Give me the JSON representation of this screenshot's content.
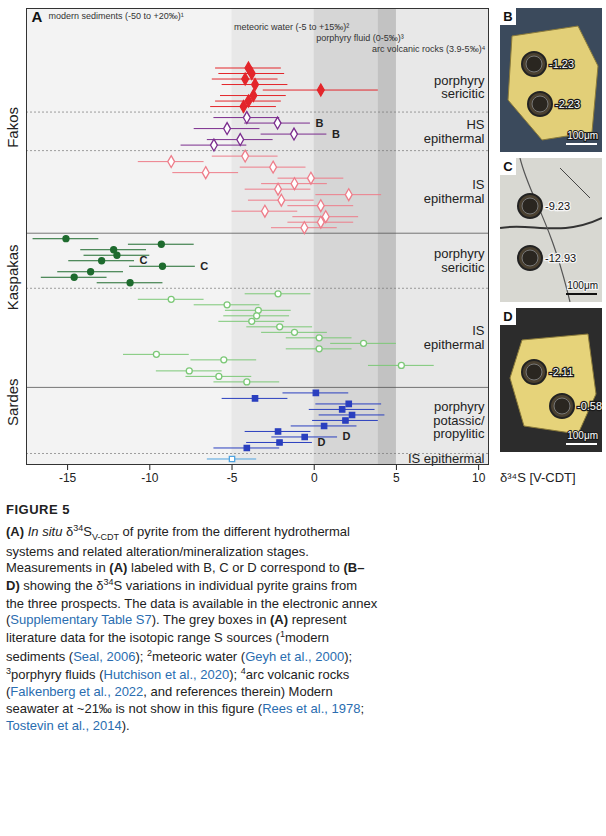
{
  "chart_data": {
    "type": "scatter",
    "panel_label": "A",
    "xlabel": "δ³⁴S [V-CDT]",
    "xlim": [
      -17.5,
      10.6
    ],
    "xticks": [
      -15,
      -10,
      -5,
      0,
      5,
      10
    ],
    "tick_labels": "x",
    "grid": false,
    "reference_ranges": [
      {
        "name": "modern sediments (-50 to +20‰)¹",
        "range": [
          -50,
          20
        ],
        "color": "#f3f3f3"
      },
      {
        "name": "meteoric water (-5 to +15‰)²",
        "range": [
          -5,
          15
        ],
        "color": "#e8e8e8"
      },
      {
        "name": "porphyry fluid (0-5‰)³",
        "range": [
          0,
          5
        ],
        "color": "#d6d6d6"
      },
      {
        "name": "arc volcanic rocks (3.9-5‰)⁴",
        "range": [
          3.9,
          5
        ],
        "color": "#c2c2c2"
      }
    ],
    "series": [
      {
        "prospect": "Fakos",
        "name": "porphyry sericitic",
        "color": "#e3262b",
        "marker": "filled-diamond",
        "values": [
          -4.0,
          -3.8,
          -4.2,
          -3.6,
          0.4,
          -3.7,
          -4.0,
          -4.3
        ],
        "errors": [
          2,
          2,
          2,
          2,
          3.5,
          2,
          2,
          2
        ],
        "labels": [
          null,
          null,
          null,
          null,
          null,
          null,
          null,
          null
        ]
      },
      {
        "prospect": "Fakos",
        "name": "HS epithermal",
        "color": "#7b2d8e",
        "marker": "open-diamond",
        "values": [
          -4.1,
          -2.23,
          -5.3,
          -1.23,
          -4.5,
          -6.1
        ],
        "errors": [
          2,
          2,
          2,
          2,
          2,
          2
        ],
        "labels": [
          null,
          "B",
          null,
          "B",
          null,
          null
        ]
      },
      {
        "prospect": "Fakos",
        "name": "IS epithermal",
        "color": "#ee7d8a",
        "marker": "open-diamond",
        "values": [
          -4.2,
          -8.7,
          -2.5,
          -6.6,
          -0.2,
          -1.2,
          -2.2,
          2.1,
          -2.0,
          0.4,
          -3.0,
          0.7,
          0.4,
          -0.6
        ],
        "errors": [
          2,
          2,
          2,
          2,
          2,
          2,
          2,
          2,
          2,
          2,
          2,
          2,
          2,
          2
        ],
        "labels": [
          null,
          null,
          null,
          null,
          null,
          null,
          null,
          null,
          null,
          null,
          null,
          null,
          null,
          null
        ]
      },
      {
        "prospect": "Kaspakas",
        "name": "porphyry sericitic",
        "color": "#1e6b2e",
        "marker": "filled-circle",
        "values": [
          -15.1,
          -9.3,
          -12.2,
          -12.0,
          -12.93,
          -9.23,
          -13.6,
          -14.6,
          -11.2
        ],
        "errors": [
          2,
          2,
          2,
          2,
          2,
          2,
          2,
          2,
          2
        ],
        "labels": [
          null,
          null,
          null,
          null,
          "C",
          "C",
          null,
          null,
          null
        ]
      },
      {
        "prospect": "Kaspakas",
        "name": "IS epithermal",
        "color": "#7cc877",
        "marker": "open-circle",
        "values": [
          -2.2,
          -8.7,
          -5.3,
          -3.4,
          -3.5,
          -3.8,
          -2.1,
          -1.2,
          0.3,
          3.0,
          0.3,
          -9.6,
          -5.5,
          5.3,
          -7.6,
          -5.8,
          -4.1
        ],
        "errors": [
          2,
          2,
          2,
          2,
          2,
          2,
          2,
          2,
          2,
          2,
          2,
          2,
          2,
          2,
          2,
          2,
          2
        ],
        "labels": [
          null,
          null,
          null,
          null,
          null,
          null,
          null,
          null,
          null,
          null,
          null,
          null,
          null,
          null,
          null,
          null,
          null
        ]
      },
      {
        "prospect": "Sardes",
        "name": "porphyry potassic/propylitic",
        "color": "#2a3fbf",
        "marker": "filled-square",
        "values": [
          0.1,
          -3.6,
          2.1,
          1.7,
          2.3,
          1.9,
          0.6,
          -2.2,
          -0.58,
          -2.11,
          -4.1
        ],
        "errors": [
          2,
          2,
          2,
          2,
          2,
          2,
          2,
          2,
          2,
          2,
          2
        ],
        "labels": [
          null,
          null,
          null,
          null,
          null,
          null,
          null,
          null,
          "D",
          "D",
          null
        ]
      },
      {
        "prospect": "Sardes",
        "name": "IS epithermal",
        "color": "#4fa3e0",
        "marker": "open-square",
        "values": [
          -5.0
        ],
        "errors": [
          1.5
        ],
        "labels": [
          null
        ]
      }
    ]
  },
  "panels": [
    {
      "label": "B",
      "spots": [
        -1.23,
        -2.23
      ],
      "scale_bar": "100μm"
    },
    {
      "label": "C",
      "spots": [
        -9.23,
        -12.93
      ],
      "scale_bar": "100μm"
    },
    {
      "label": "D",
      "spots": [
        -2.11,
        -0.58
      ],
      "scale_bar": "100μm"
    }
  ],
  "caption": {
    "heading": "FIGURE 5",
    "segments": [
      {
        "text": "(A)",
        "style": "b"
      },
      {
        "text": " "
      },
      {
        "text": "In situ",
        "style": "i"
      },
      {
        "text": " δ"
      },
      {
        "text": "34",
        "style": "sup"
      },
      {
        "text": "S"
      },
      {
        "text": "V-CDT",
        "style": "sub"
      },
      {
        "text": " of pyrite from the different hydrothermal systems and related alteration/mineralization stages. Measurements in "
      },
      {
        "text": "(A)",
        "style": "b"
      },
      {
        "text": " labeled with B, C or D correspond to "
      },
      {
        "text": "(B–D)",
        "style": "b"
      },
      {
        "text": " showing the δ"
      },
      {
        "text": "34",
        "style": "sup"
      },
      {
        "text": "S variations in individual pyrite grains from the three prospects. The data is available in the electronic annex ("
      },
      {
        "text": "Supplementary Table S7",
        "style": "link"
      },
      {
        "text": "). The grey boxes in "
      },
      {
        "text": "(A)",
        "style": "b"
      },
      {
        "text": " represent literature data for the isotopic range S sources ("
      },
      {
        "text": "1",
        "style": "sup"
      },
      {
        "text": "modern sediments ("
      },
      {
        "text": "Seal, 2006",
        "style": "link"
      },
      {
        "text": "); "
      },
      {
        "text": "2",
        "style": "sup"
      },
      {
        "text": "meteoric water ("
      },
      {
        "text": "Geyh et al., 2000",
        "style": "link"
      },
      {
        "text": "); "
      },
      {
        "text": "3",
        "style": "sup"
      },
      {
        "text": "porphyry fluids ("
      },
      {
        "text": "Hutchison et al., 2020",
        "style": "link"
      },
      {
        "text": "); "
      },
      {
        "text": "4",
        "style": "sup"
      },
      {
        "text": "arc volcanic rocks ("
      },
      {
        "text": "Falkenberg et al., 2022",
        "style": "link"
      },
      {
        "text": ", and references therein) Modern seawater at ~21‰ is not show in this figure ("
      },
      {
        "text": "Rees et al., 1978",
        "style": "link"
      },
      {
        "text": "; "
      },
      {
        "text": "Tostevin et al., 2014",
        "style": "link"
      },
      {
        "text": ")."
      }
    ]
  }
}
